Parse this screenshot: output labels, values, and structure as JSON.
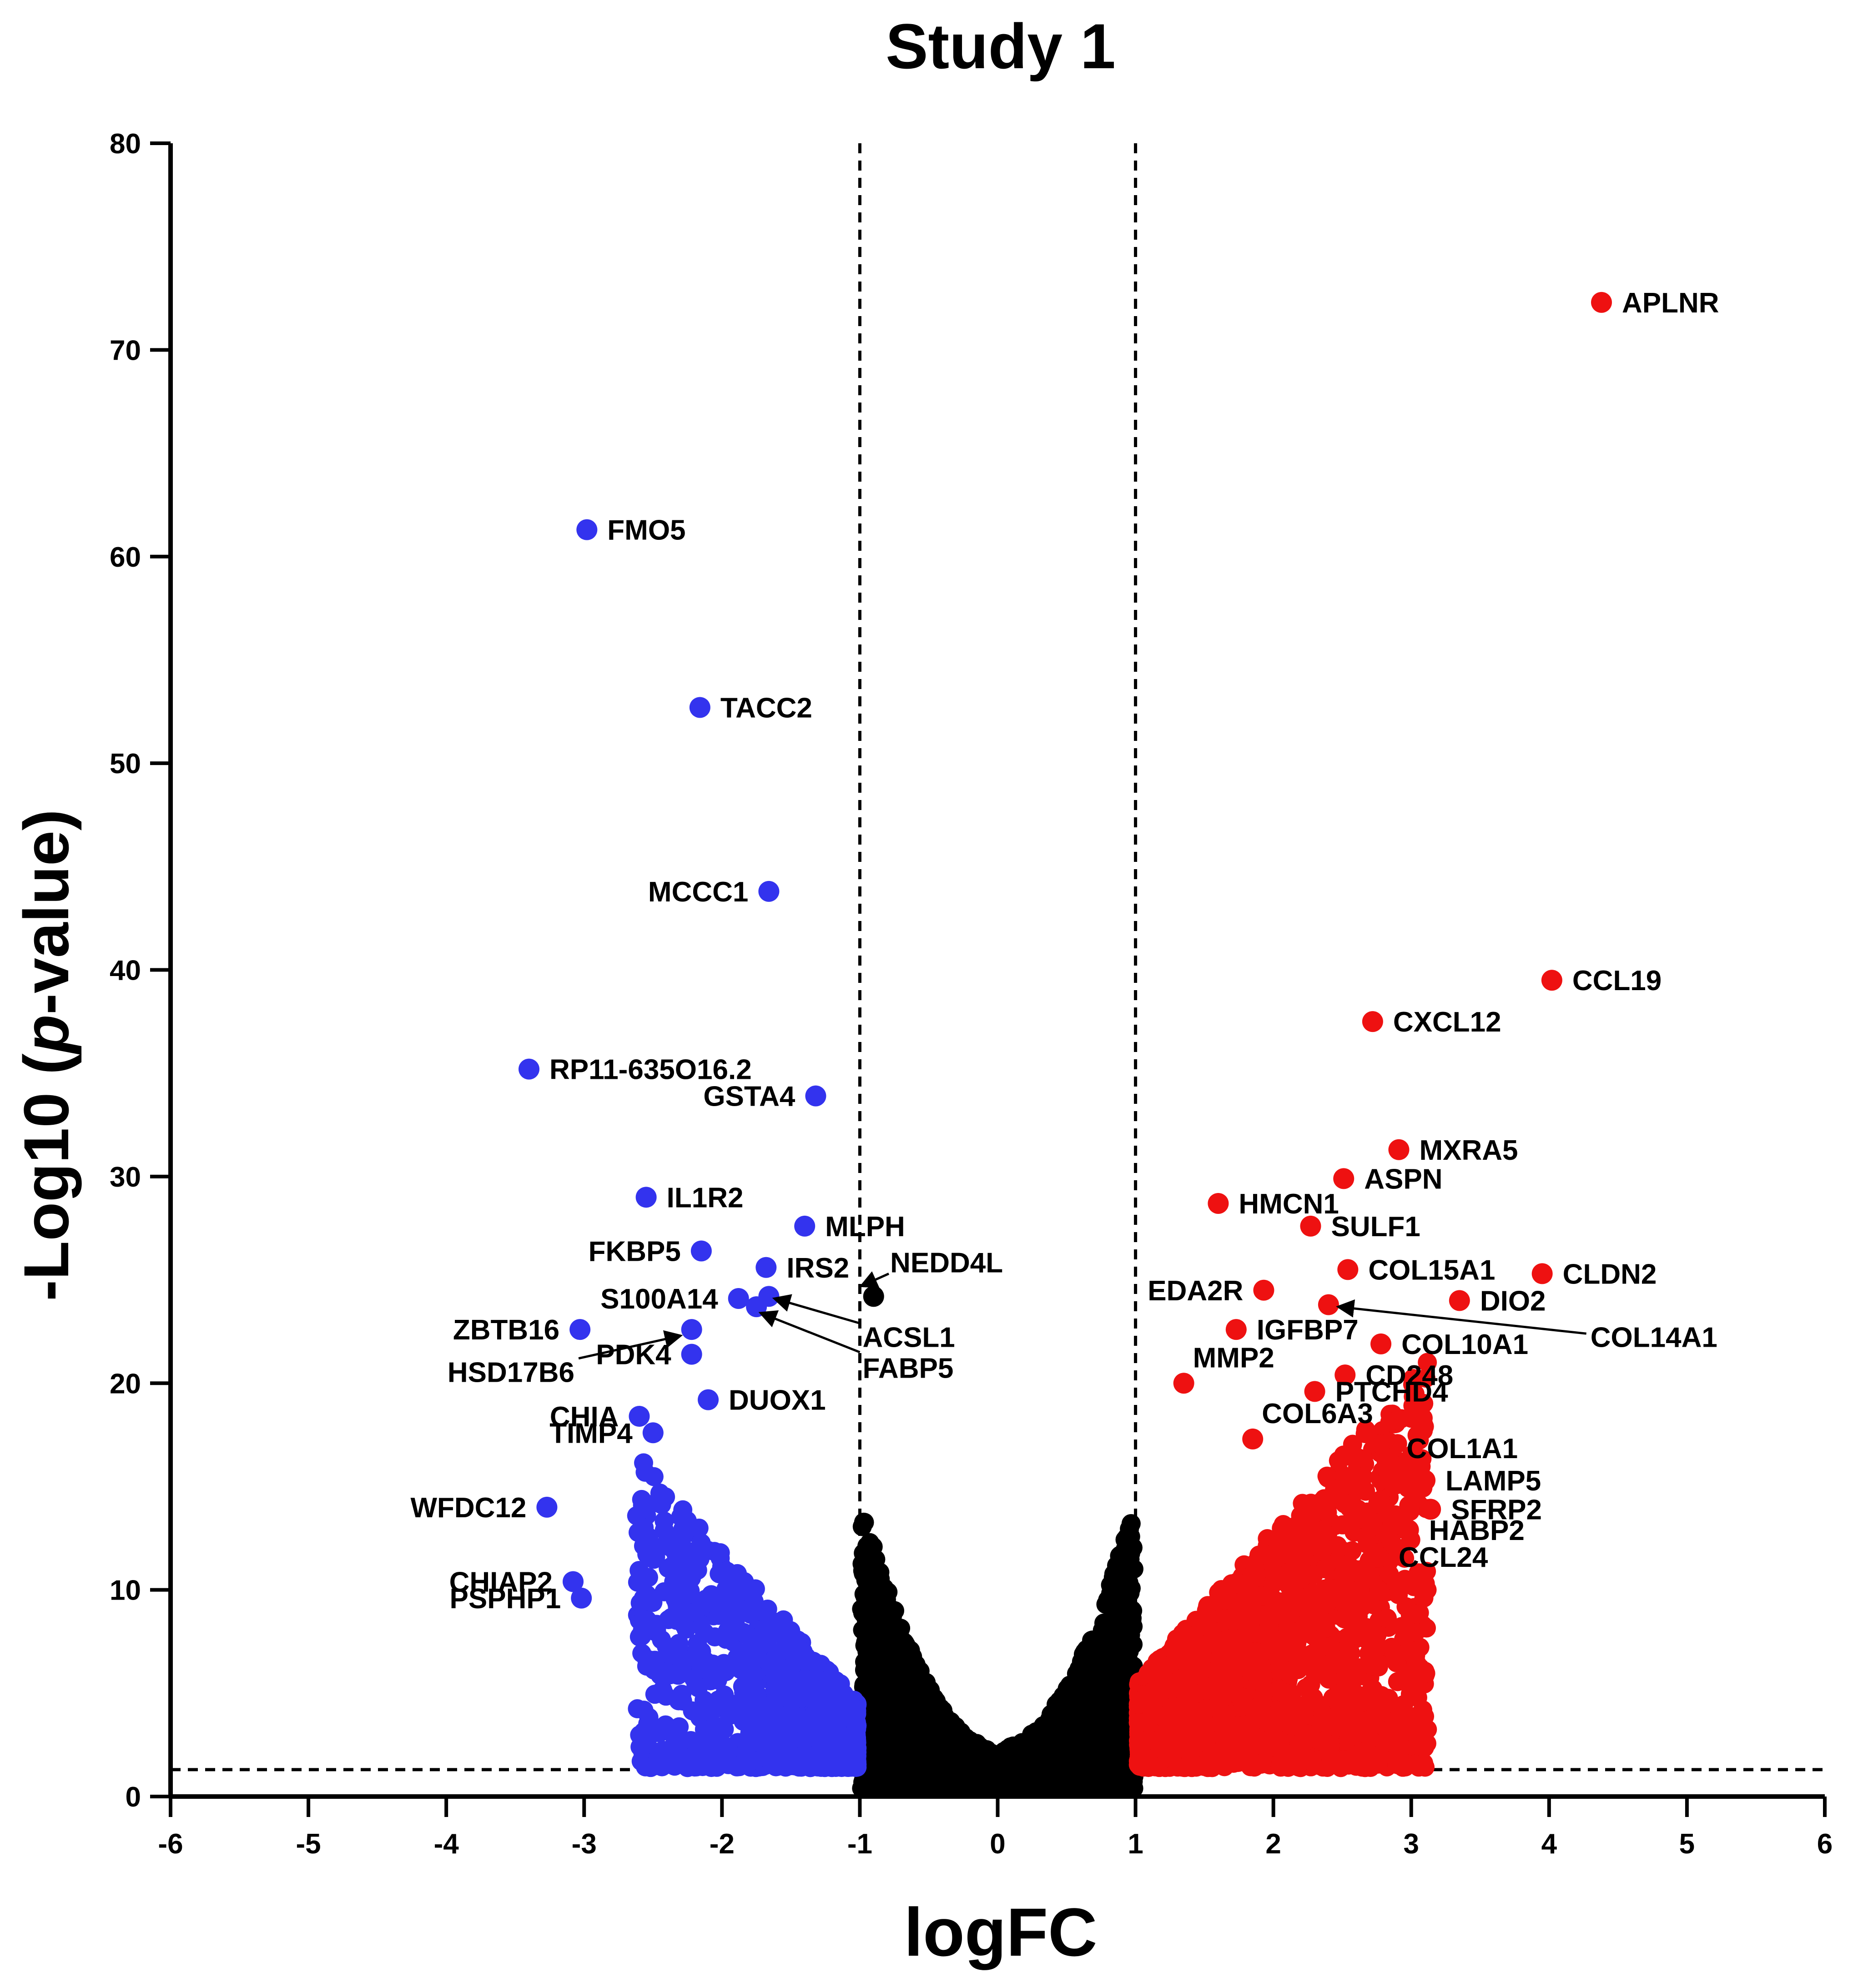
{
  "chart_data": {
    "type": "scatter",
    "title": "Study 1",
    "xlabel": "logFC",
    "ylabel_main": "-Log10 (",
    "ylabel_italic": "p",
    "ylabel_tail": "-value)",
    "xlim": [
      -6,
      6
    ],
    "ylim": [
      0,
      80
    ],
    "xticks": [
      -6,
      -5,
      -4,
      -3,
      -2,
      -1,
      0,
      1,
      2,
      3,
      4,
      5,
      6
    ],
    "yticks": [
      0,
      10,
      20,
      30,
      40,
      50,
      60,
      70,
      80
    ],
    "thresholds": {
      "logfc": [
        -1,
        1
      ],
      "neglog10p": 1.3
    },
    "grid": false,
    "colors": {
      "down": "#3333ee",
      "up": "#ee1111",
      "ns": "#000000",
      "axis": "#000000"
    },
    "labeled_genes": [
      {
        "gene": "APLNR",
        "x": 4.38,
        "y": 72.3,
        "group": "up",
        "anchor": "right"
      },
      {
        "gene": "CCL19",
        "x": 4.02,
        "y": 39.5,
        "group": "up",
        "anchor": "right"
      },
      {
        "gene": "CXCL12",
        "x": 2.72,
        "y": 37.5,
        "group": "up",
        "anchor": "right"
      },
      {
        "gene": "MXRA5",
        "x": 2.91,
        "y": 31.3,
        "group": "up",
        "anchor": "right"
      },
      {
        "gene": "ASPN",
        "x": 2.51,
        "y": 29.9,
        "group": "up",
        "anchor": "right"
      },
      {
        "gene": "HMCN1",
        "x": 1.6,
        "y": 28.7,
        "group": "up",
        "anchor": "right"
      },
      {
        "gene": "SULF1",
        "x": 2.27,
        "y": 27.6,
        "group": "up",
        "anchor": "right"
      },
      {
        "gene": "COL15A1",
        "x": 2.54,
        "y": 25.5,
        "group": "up",
        "anchor": "right"
      },
      {
        "gene": "CLDN2",
        "x": 3.95,
        "y": 25.3,
        "group": "up",
        "anchor": "right"
      },
      {
        "gene": "EDA2R",
        "x": 1.93,
        "y": 24.5,
        "group": "up",
        "anchor": "left"
      },
      {
        "gene": "DIO2",
        "x": 3.35,
        "y": 24.0,
        "group": "up",
        "anchor": "right"
      },
      {
        "gene": "COL14A1",
        "x": 2.4,
        "y": 23.8,
        "group": "up",
        "anchor": "arrow"
      },
      {
        "gene": "IGFBP7",
        "x": 1.73,
        "y": 22.6,
        "group": "up",
        "anchor": "right"
      },
      {
        "gene": "COL10A1",
        "x": 2.78,
        "y": 21.9,
        "group": "up",
        "anchor": "right"
      },
      {
        "gene": "MMP2",
        "x": 1.35,
        "y": 20.0,
        "group": "up",
        "anchor": "above"
      },
      {
        "gene": "CD248",
        "x": 2.52,
        "y": 20.4,
        "group": "up",
        "anchor": "right"
      },
      {
        "gene": "PTCHD4",
        "x": 2.3,
        "y": 19.6,
        "group": "up",
        "anchor": "right"
      },
      {
        "gene": "COL6A3",
        "x": 1.85,
        "y": 17.3,
        "group": "up",
        "anchor": "above"
      },
      {
        "gene": "COL1A1",
        "x": 2.9,
        "y": 15.6,
        "group": "up",
        "anchor": "above"
      },
      {
        "gene": "LAMP5",
        "x": 3.1,
        "y": 15.3,
        "group": "up",
        "anchor": "right"
      },
      {
        "gene": "SFRP2",
        "x": 3.14,
        "y": 13.9,
        "group": "up",
        "anchor": "right"
      },
      {
        "gene": "HABP2",
        "x": 2.98,
        "y": 12.9,
        "group": "up",
        "anchor": "right"
      },
      {
        "gene": "CCL24",
        "x": 2.76,
        "y": 11.6,
        "group": "up",
        "anchor": "right"
      },
      {
        "gene": "FMO5",
        "x": -2.98,
        "y": 61.3,
        "group": "down",
        "anchor": "right"
      },
      {
        "gene": "TACC2",
        "x": -2.16,
        "y": 52.7,
        "group": "down",
        "anchor": "right"
      },
      {
        "gene": "MCCC1",
        "x": -1.66,
        "y": 43.8,
        "group": "down",
        "anchor": "left"
      },
      {
        "gene": "RP11-635O16.2",
        "x": -3.4,
        "y": 35.2,
        "group": "down",
        "anchor": "right"
      },
      {
        "gene": "GSTA4",
        "x": -1.32,
        "y": 33.9,
        "group": "down",
        "anchor": "left"
      },
      {
        "gene": "IL1R2",
        "x": -2.55,
        "y": 29.0,
        "group": "down",
        "anchor": "right"
      },
      {
        "gene": "MLPH",
        "x": -1.4,
        "y": 27.6,
        "group": "down",
        "anchor": "right"
      },
      {
        "gene": "FKBP5",
        "x": -2.15,
        "y": 26.4,
        "group": "down",
        "anchor": "left"
      },
      {
        "gene": "IRS2",
        "x": -1.68,
        "y": 25.6,
        "group": "down",
        "anchor": "right"
      },
      {
        "gene": "NEDD4L",
        "x": -0.9,
        "y": 24.2,
        "group": "ns",
        "anchor": "arrow"
      },
      {
        "gene": "S100A14",
        "x": -1.88,
        "y": 24.1,
        "group": "down",
        "anchor": "left"
      },
      {
        "gene": "ACSL1",
        "x": -1.66,
        "y": 24.2,
        "group": "down",
        "anchor": "arrow"
      },
      {
        "gene": "FABP5",
        "x": -1.75,
        "y": 23.7,
        "group": "down",
        "anchor": "arrow"
      },
      {
        "gene": "ZBTB16",
        "x": -3.03,
        "y": 22.6,
        "group": "down",
        "anchor": "left"
      },
      {
        "gene": "HSD17B6",
        "x": -2.22,
        "y": 22.6,
        "group": "down",
        "anchor": "arrow"
      },
      {
        "gene": "PDK4",
        "x": -2.22,
        "y": 21.4,
        "group": "down",
        "anchor": "left"
      },
      {
        "gene": "DUOX1",
        "x": -2.1,
        "y": 19.2,
        "group": "down",
        "anchor": "right"
      },
      {
        "gene": "CHIA",
        "x": -2.6,
        "y": 18.4,
        "group": "down",
        "anchor": "left"
      },
      {
        "gene": "TIMP4",
        "x": -2.5,
        "y": 17.6,
        "group": "down",
        "anchor": "left"
      },
      {
        "gene": "WFDC12",
        "x": -3.27,
        "y": 14.0,
        "group": "down",
        "anchor": "left"
      },
      {
        "gene": "CHIAP2",
        "x": -3.08,
        "y": 10.4,
        "group": "down",
        "anchor": "left"
      },
      {
        "gene": "PSPHP1",
        "x": -3.02,
        "y": 9.6,
        "group": "down",
        "anchor": "left"
      }
    ]
  }
}
